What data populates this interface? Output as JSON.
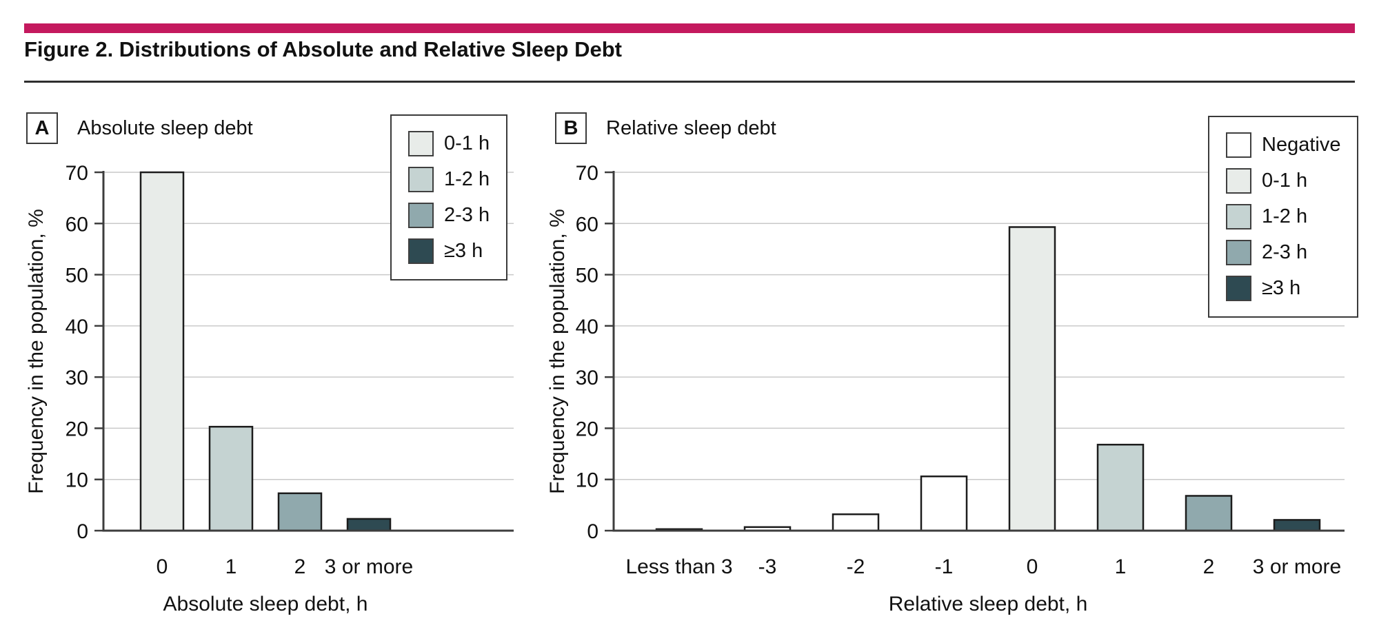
{
  "figure": {
    "title": "Figure 2. Distributions of Absolute and Relative Sleep Debt",
    "accent_color": "#c4195e",
    "rule_color": "#2e2e2e",
    "background": "#ffffff",
    "text_color": "#111111"
  },
  "colors": {
    "negative": "#ffffff",
    "h0_1": "#e8ece9",
    "h1_2": "#c5d3d2",
    "h2_3": "#90a9ad",
    "h3_plus": "#2e4a52",
    "bar_outline": "#1c1c1c",
    "gridline": "#c9c9c9",
    "axis": "#3d3d3d"
  },
  "panels": [
    {
      "letter": "A",
      "title": "Absolute sleep debt",
      "legend": [
        {
          "label": "0-1 h",
          "color": "h0_1"
        },
        {
          "label": "1-2 h",
          "color": "h1_2"
        },
        {
          "label": "2-3 h",
          "color": "h2_3"
        },
        {
          "label": "≥3 h",
          "color": "h3_plus"
        }
      ]
    },
    {
      "letter": "B",
      "title": "Relative sleep debt",
      "legend": [
        {
          "label": "Negative",
          "color": "negative"
        },
        {
          "label": "0-1 h",
          "color": "h0_1"
        },
        {
          "label": "1-2 h",
          "color": "h1_2"
        },
        {
          "label": "2-3 h",
          "color": "h2_3"
        },
        {
          "label": "≥3 h",
          "color": "h3_plus"
        }
      ]
    }
  ],
  "chart_data": [
    {
      "type": "bar",
      "panel": "A",
      "title": "Absolute sleep debt",
      "categories": [
        "0",
        "1",
        "2",
        "3 or more"
      ],
      "values": [
        70,
        20.3,
        7.3,
        2.3
      ],
      "bar_colors": [
        "h0_1",
        "h1_2",
        "h2_3",
        "h3_plus"
      ],
      "xlabel": "Absolute sleep debt, h",
      "ylabel": "Frequency in the population, %",
      "ylim": [
        0,
        70
      ],
      "yticks": [
        0,
        10,
        20,
        30,
        40,
        50,
        60,
        70
      ],
      "grid": true,
      "legend_position": "top-right-inside"
    },
    {
      "type": "bar",
      "panel": "B",
      "title": "Relative sleep debt",
      "categories": [
        "Less than 3",
        "-3",
        "-2",
        "-1",
        "0",
        "1",
        "2",
        "3 or more"
      ],
      "values": [
        0.3,
        0.7,
        3.2,
        10.6,
        59.3,
        16.8,
        6.8,
        2.1
      ],
      "bar_colors": [
        "negative",
        "negative",
        "negative",
        "negative",
        "h0_1",
        "h1_2",
        "h2_3",
        "h3_plus"
      ],
      "xlabel": "Relative sleep debt, h",
      "ylabel": "Frequency in the population, %",
      "ylim": [
        0,
        70
      ],
      "yticks": [
        0,
        10,
        20,
        30,
        40,
        50,
        60,
        70
      ],
      "grid": true,
      "legend_position": "top-right-inside"
    }
  ]
}
